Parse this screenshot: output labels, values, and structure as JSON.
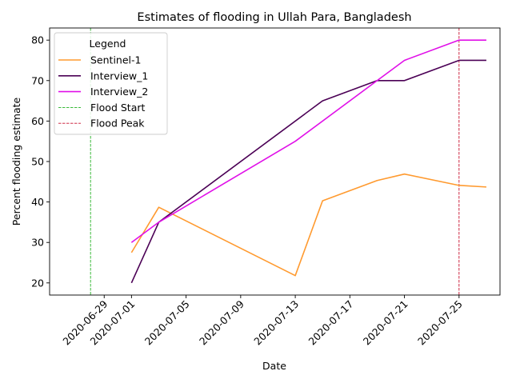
{
  "chart_data": {
    "type": "line",
    "title": "Estimates of flooding in Ullah Para, Bangladesh",
    "xlabel": "Date",
    "ylabel": "Percent flooding estimate",
    "x_axis_type": "date",
    "xlim": [
      "2020-06-25",
      "2020-07-28"
    ],
    "ylim": [
      17,
      83
    ],
    "x_ticks": [
      "2020-06-29",
      "2020-07-01",
      "2020-07-05",
      "2020-07-09",
      "2020-07-13",
      "2020-07-17",
      "2020-07-21",
      "2020-07-25"
    ],
    "y_ticks": [
      20,
      30,
      40,
      50,
      60,
      70,
      80
    ],
    "grid": false,
    "legend": {
      "title": "Legend",
      "position": "top-left"
    },
    "series": [
      {
        "name": "Sentinel-1",
        "color": "#ff9a2f",
        "style": "solid",
        "points": [
          {
            "x": "2020-07-01",
            "y": 27.5
          },
          {
            "x": "2020-07-03",
            "y": 38.7
          },
          {
            "x": "2020-07-13",
            "y": 21.8
          },
          {
            "x": "2020-07-15",
            "y": 40.3
          },
          {
            "x": "2020-07-19",
            "y": 45.3
          },
          {
            "x": "2020-07-21",
            "y": 46.9
          },
          {
            "x": "2020-07-25",
            "y": 44.1
          },
          {
            "x": "2020-07-27",
            "y": 43.7
          }
        ]
      },
      {
        "name": "Interview_1",
        "color": "#4b0055",
        "style": "solid",
        "points": [
          {
            "x": "2020-07-01",
            "y": 20
          },
          {
            "x": "2020-07-03",
            "y": 35
          },
          {
            "x": "2020-07-15",
            "y": 65
          },
          {
            "x": "2020-07-19",
            "y": 70
          },
          {
            "x": "2020-07-21",
            "y": 70
          },
          {
            "x": "2020-07-25",
            "y": 75
          },
          {
            "x": "2020-07-27",
            "y": 75
          }
        ]
      },
      {
        "name": "Interview_2",
        "color": "#e010e8",
        "style": "solid",
        "points": [
          {
            "x": "2020-07-01",
            "y": 30
          },
          {
            "x": "2020-07-03",
            "y": 35
          },
          {
            "x": "2020-07-13",
            "y": 55
          },
          {
            "x": "2020-07-19",
            "y": 70
          },
          {
            "x": "2020-07-21",
            "y": 75
          },
          {
            "x": "2020-07-25",
            "y": 80
          },
          {
            "x": "2020-07-27",
            "y": 80
          }
        ]
      }
    ],
    "vlines": [
      {
        "name": "Flood Start",
        "x": "2020-06-28",
        "color": "#22b022",
        "style": "dashed"
      },
      {
        "name": "Flood Peak",
        "x": "2020-07-25",
        "color": "#c8102e",
        "style": "dashed"
      }
    ]
  }
}
